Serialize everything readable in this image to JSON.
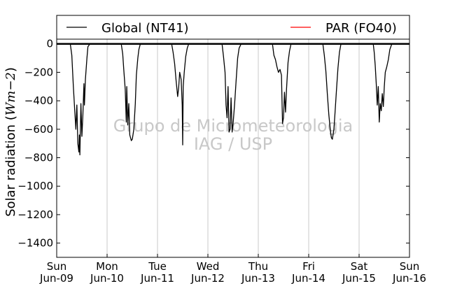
{
  "chart_data": {
    "type": "line",
    "ylabel_text": "Solar radiation (",
    "ylabel_math": "Wm",
    "ylabel_exp": "−2",
    "ylabel_close": ")",
    "ylim": [
      -1500,
      200
    ],
    "xlim_days": [
      0,
      7
    ],
    "yticks": [
      {
        "value": 0,
        "label": "0"
      },
      {
        "value": -200,
        "label": "−200"
      },
      {
        "value": -400,
        "label": "−400"
      },
      {
        "value": -600,
        "label": "−600"
      },
      {
        "value": -800,
        "label": "−800"
      },
      {
        "value": -1000,
        "label": "−1000"
      },
      {
        "value": -1200,
        "label": "−1200"
      },
      {
        "value": -1400,
        "label": "−1400"
      }
    ],
    "xticks": [
      {
        "day": 0,
        "weekday": "Sun",
        "date": "Jun-09"
      },
      {
        "day": 1,
        "weekday": "Mon",
        "date": "Jun-10"
      },
      {
        "day": 2,
        "weekday": "Tue",
        "date": "Jun-11"
      },
      {
        "day": 3,
        "weekday": "Wed",
        "date": "Jun-12"
      },
      {
        "day": 4,
        "weekday": "Thu",
        "date": "Jun-13"
      },
      {
        "day": 5,
        "weekday": "Fri",
        "date": "Jun-14"
      },
      {
        "day": 6,
        "weekday": "Sat",
        "date": "Jun-15"
      },
      {
        "day": 7,
        "weekday": "Sun",
        "date": "Jun-16"
      }
    ],
    "grid": "vertical",
    "legend_position": "top",
    "series": [
      {
        "name": "Global (NT41)",
        "color": "#000000",
        "points": [
          [
            0.0,
            0
          ],
          [
            0.27,
            0
          ],
          [
            0.3,
            -80
          ],
          [
            0.33,
            -300
          ],
          [
            0.36,
            -480
          ],
          [
            0.38,
            -600
          ],
          [
            0.4,
            -430
          ],
          [
            0.42,
            -700
          ],
          [
            0.44,
            -760
          ],
          [
            0.45,
            -640
          ],
          [
            0.46,
            -780
          ],
          [
            0.48,
            -420
          ],
          [
            0.5,
            -650
          ],
          [
            0.52,
            -500
          ],
          [
            0.54,
            -280
          ],
          [
            0.55,
            -430
          ],
          [
            0.57,
            -250
          ],
          [
            0.6,
            -100
          ],
          [
            0.62,
            -20
          ],
          [
            0.66,
            0
          ],
          [
            1.28,
            0
          ],
          [
            1.31,
            -70
          ],
          [
            1.33,
            -180
          ],
          [
            1.36,
            -320
          ],
          [
            1.38,
            -550
          ],
          [
            1.39,
            -300
          ],
          [
            1.41,
            -570
          ],
          [
            1.43,
            -420
          ],
          [
            1.45,
            -640
          ],
          [
            1.48,
            -680
          ],
          [
            1.5,
            -670
          ],
          [
            1.53,
            -600
          ],
          [
            1.56,
            -420
          ],
          [
            1.58,
            -220
          ],
          [
            1.61,
            -100
          ],
          [
            1.63,
            -40
          ],
          [
            1.66,
            0
          ],
          [
            2.28,
            0
          ],
          [
            2.31,
            -60
          ],
          [
            2.34,
            -140
          ],
          [
            2.37,
            -260
          ],
          [
            2.4,
            -370
          ],
          [
            2.42,
            -310
          ],
          [
            2.44,
            -200
          ],
          [
            2.47,
            -250
          ],
          [
            2.49,
            -430
          ],
          [
            2.5,
            -710
          ],
          [
            2.51,
            -300
          ],
          [
            2.53,
            -200
          ],
          [
            2.56,
            -90
          ],
          [
            2.59,
            -30
          ],
          [
            2.62,
            0
          ],
          [
            3.28,
            0
          ],
          [
            3.31,
            -90
          ],
          [
            3.34,
            -200
          ],
          [
            3.36,
            -430
          ],
          [
            3.38,
            -520
          ],
          [
            3.4,
            -300
          ],
          [
            3.42,
            -620
          ],
          [
            3.44,
            -600
          ],
          [
            3.46,
            -380
          ],
          [
            3.48,
            -620
          ],
          [
            3.5,
            -560
          ],
          [
            3.53,
            -420
          ],
          [
            3.56,
            -260
          ],
          [
            3.59,
            -100
          ],
          [
            3.62,
            -30
          ],
          [
            3.66,
            0
          ],
          [
            4.28,
            0
          ],
          [
            4.31,
            -80
          ],
          [
            4.34,
            -110
          ],
          [
            4.37,
            -160
          ],
          [
            4.4,
            -200
          ],
          [
            4.43,
            -180
          ],
          [
            4.46,
            -220
          ],
          [
            4.48,
            -560
          ],
          [
            4.5,
            -520
          ],
          [
            4.52,
            -340
          ],
          [
            4.54,
            -480
          ],
          [
            4.56,
            -320
          ],
          [
            4.59,
            -130
          ],
          [
            4.62,
            -50
          ],
          [
            4.65,
            0
          ],
          [
            5.28,
            0
          ],
          [
            5.31,
            -80
          ],
          [
            5.34,
            -190
          ],
          [
            5.37,
            -350
          ],
          [
            5.4,
            -500
          ],
          [
            5.43,
            -610
          ],
          [
            5.45,
            -660
          ],
          [
            5.47,
            -670
          ],
          [
            5.5,
            -600
          ],
          [
            5.52,
            -500
          ],
          [
            5.55,
            -330
          ],
          [
            5.58,
            -170
          ],
          [
            5.61,
            -60
          ],
          [
            5.64,
            0
          ],
          [
            6.28,
            0
          ],
          [
            6.3,
            -60
          ],
          [
            6.32,
            -150
          ],
          [
            6.34,
            -280
          ],
          [
            6.36,
            -430
          ],
          [
            6.38,
            -300
          ],
          [
            6.4,
            -550
          ],
          [
            6.42,
            -420
          ],
          [
            6.44,
            -470
          ],
          [
            6.46,
            -350
          ],
          [
            6.48,
            -440
          ],
          [
            6.5,
            -300
          ],
          [
            6.52,
            -200
          ],
          [
            6.55,
            -160
          ],
          [
            6.58,
            -110
          ],
          [
            6.61,
            -40
          ],
          [
            6.65,
            0
          ],
          [
            7.0,
            0
          ]
        ]
      },
      {
        "name": "PAR (FO40)",
        "color": "#ff0000",
        "points": [
          [
            0.0,
            0
          ],
          [
            7.0,
            0
          ]
        ]
      }
    ]
  },
  "watermark": {
    "line1": "Grupo de Micrometeorologia",
    "line2": "IAG / USP"
  }
}
